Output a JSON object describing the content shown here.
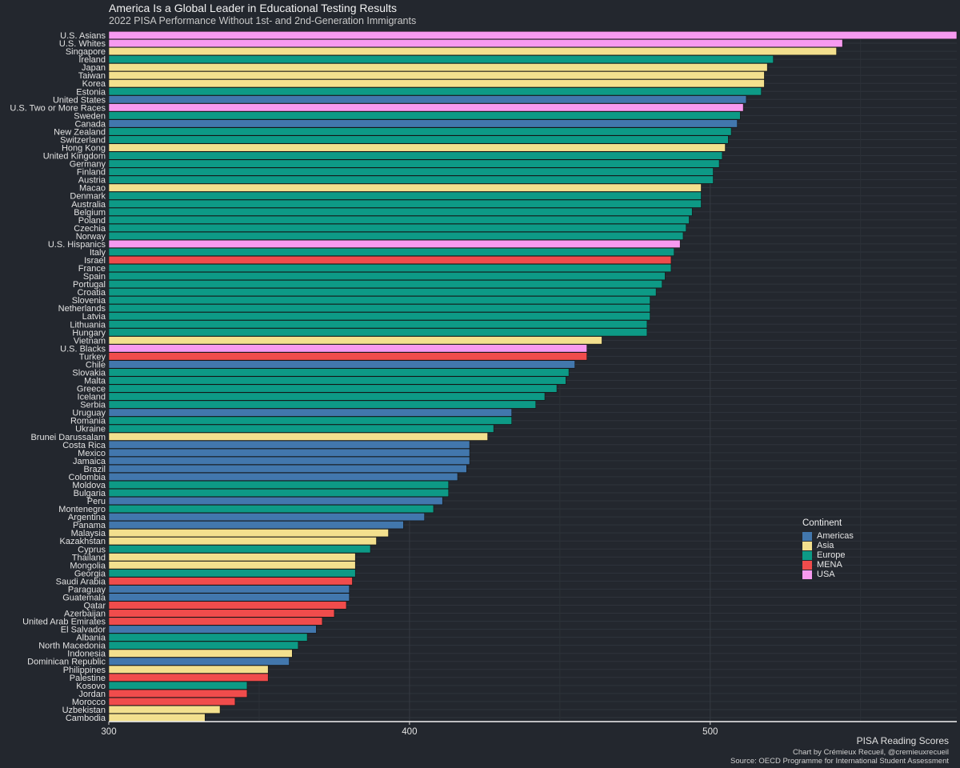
{
  "chart_data": {
    "type": "bar",
    "orientation": "horizontal",
    "title": "America Is a Global Leader in Educational Testing Results",
    "subtitle": "2022 PISA Performance Without 1st- and 2nd-Generation Immigrants",
    "xlabel": "PISA Reading Scores",
    "xlim": [
      300,
      582
    ],
    "xticks": [
      300,
      400,
      500
    ],
    "grid": true,
    "legend_title": "Continent",
    "legend_position": "right",
    "legend": [
      {
        "name": "Americas",
        "color": "#4277ad"
      },
      {
        "name": "Asia",
        "color": "#f3e08e"
      },
      {
        "name": "Europe",
        "color": "#0d9a86"
      },
      {
        "name": "MENA",
        "color": "#f04c4c"
      },
      {
        "name": "USA",
        "color": "#f79af0"
      }
    ],
    "bars": [
      {
        "label": "U.S. Asians",
        "value": 582,
        "group": "USA"
      },
      {
        "label": "U.S. Whites",
        "value": 544,
        "group": "USA"
      },
      {
        "label": "Singapore",
        "value": 542,
        "group": "Asia"
      },
      {
        "label": "Ireland",
        "value": 521,
        "group": "Europe"
      },
      {
        "label": "Japan",
        "value": 519,
        "group": "Asia"
      },
      {
        "label": "Taiwan",
        "value": 518,
        "group": "Asia"
      },
      {
        "label": "Korea",
        "value": 518,
        "group": "Asia"
      },
      {
        "label": "Estonia",
        "value": 517,
        "group": "Europe"
      },
      {
        "label": "United States",
        "value": 512,
        "group": "Americas"
      },
      {
        "label": "U.S. Two or More Races",
        "value": 511,
        "group": "USA"
      },
      {
        "label": "Sweden",
        "value": 510,
        "group": "Europe"
      },
      {
        "label": "Canada",
        "value": 509,
        "group": "Americas"
      },
      {
        "label": "New Zealand",
        "value": 507,
        "group": "Europe"
      },
      {
        "label": "Switzerland",
        "value": 506,
        "group": "Europe"
      },
      {
        "label": "Hong Kong",
        "value": 505,
        "group": "Asia"
      },
      {
        "label": "United Kingdom",
        "value": 504,
        "group": "Europe"
      },
      {
        "label": "Germany",
        "value": 503,
        "group": "Europe"
      },
      {
        "label": "Finland",
        "value": 501,
        "group": "Europe"
      },
      {
        "label": "Austria",
        "value": 501,
        "group": "Europe"
      },
      {
        "label": "Macao",
        "value": 497,
        "group": "Asia"
      },
      {
        "label": "Denmark",
        "value": 497,
        "group": "Europe"
      },
      {
        "label": "Australia",
        "value": 497,
        "group": "Europe"
      },
      {
        "label": "Belgium",
        "value": 494,
        "group": "Europe"
      },
      {
        "label": "Poland",
        "value": 493,
        "group": "Europe"
      },
      {
        "label": "Czechia",
        "value": 492,
        "group": "Europe"
      },
      {
        "label": "Norway",
        "value": 491,
        "group": "Europe"
      },
      {
        "label": "U.S. Hispanics",
        "value": 490,
        "group": "USA"
      },
      {
        "label": "Italy",
        "value": 488,
        "group": "Europe"
      },
      {
        "label": "Israel",
        "value": 487,
        "group": "MENA"
      },
      {
        "label": "France",
        "value": 487,
        "group": "Europe"
      },
      {
        "label": "Spain",
        "value": 485,
        "group": "Europe"
      },
      {
        "label": "Portugal",
        "value": 484,
        "group": "Europe"
      },
      {
        "label": "Croatia",
        "value": 482,
        "group": "Europe"
      },
      {
        "label": "Slovenia",
        "value": 480,
        "group": "Europe"
      },
      {
        "label": "Netherlands",
        "value": 480,
        "group": "Europe"
      },
      {
        "label": "Latvia",
        "value": 480,
        "group": "Europe"
      },
      {
        "label": "Lithuania",
        "value": 479,
        "group": "Europe"
      },
      {
        "label": "Hungary",
        "value": 479,
        "group": "Europe"
      },
      {
        "label": "Vietnam",
        "value": 464,
        "group": "Asia"
      },
      {
        "label": "U.S. Blacks",
        "value": 459,
        "group": "USA"
      },
      {
        "label": "Turkey",
        "value": 459,
        "group": "MENA"
      },
      {
        "label": "Chile",
        "value": 455,
        "group": "Americas"
      },
      {
        "label": "Slovakia",
        "value": 453,
        "group": "Europe"
      },
      {
        "label": "Malta",
        "value": 452,
        "group": "Europe"
      },
      {
        "label": "Greece",
        "value": 449,
        "group": "Europe"
      },
      {
        "label": "Iceland",
        "value": 445,
        "group": "Europe"
      },
      {
        "label": "Serbia",
        "value": 442,
        "group": "Europe"
      },
      {
        "label": "Uruguay",
        "value": 434,
        "group": "Americas"
      },
      {
        "label": "Romania",
        "value": 434,
        "group": "Europe"
      },
      {
        "label": "Ukraine",
        "value": 428,
        "group": "Europe"
      },
      {
        "label": "Brunei Darussalam",
        "value": 426,
        "group": "Asia"
      },
      {
        "label": "Costa Rica",
        "value": 420,
        "group": "Americas"
      },
      {
        "label": "Mexico",
        "value": 420,
        "group": "Americas"
      },
      {
        "label": "Jamaica",
        "value": 420,
        "group": "Americas"
      },
      {
        "label": "Brazil",
        "value": 419,
        "group": "Americas"
      },
      {
        "label": "Colombia",
        "value": 416,
        "group": "Americas"
      },
      {
        "label": "Moldova",
        "value": 413,
        "group": "Europe"
      },
      {
        "label": "Bulgaria",
        "value": 413,
        "group": "Europe"
      },
      {
        "label": "Peru",
        "value": 411,
        "group": "Americas"
      },
      {
        "label": "Montenegro",
        "value": 408,
        "group": "Europe"
      },
      {
        "label": "Argentina",
        "value": 405,
        "group": "Americas"
      },
      {
        "label": "Panama",
        "value": 398,
        "group": "Americas"
      },
      {
        "label": "Malaysia",
        "value": 393,
        "group": "Asia"
      },
      {
        "label": "Kazakhstan",
        "value": 389,
        "group": "Asia"
      },
      {
        "label": "Cyprus",
        "value": 387,
        "group": "Europe"
      },
      {
        "label": "Thailand",
        "value": 382,
        "group": "Asia"
      },
      {
        "label": "Mongolia",
        "value": 382,
        "group": "Asia"
      },
      {
        "label": "Georgia",
        "value": 382,
        "group": "Europe"
      },
      {
        "label": "Saudi Arabia",
        "value": 381,
        "group": "MENA"
      },
      {
        "label": "Paraguay",
        "value": 380,
        "group": "Americas"
      },
      {
        "label": "Guatemala",
        "value": 380,
        "group": "Americas"
      },
      {
        "label": "Qatar",
        "value": 379,
        "group": "MENA"
      },
      {
        "label": "Azerbaijan",
        "value": 375,
        "group": "MENA"
      },
      {
        "label": "United Arab Emirates",
        "value": 371,
        "group": "MENA"
      },
      {
        "label": "El Salvador",
        "value": 369,
        "group": "Americas"
      },
      {
        "label": "Albania",
        "value": 366,
        "group": "Europe"
      },
      {
        "label": "North Macedonia",
        "value": 363,
        "group": "Europe"
      },
      {
        "label": "Indonesia",
        "value": 361,
        "group": "Asia"
      },
      {
        "label": "Dominican Republic",
        "value": 360,
        "group": "Americas"
      },
      {
        "label": "Philippines",
        "value": 353,
        "group": "Asia"
      },
      {
        "label": "Palestine",
        "value": 353,
        "group": "MENA"
      },
      {
        "label": "Kosovo",
        "value": 346,
        "group": "Europe"
      },
      {
        "label": "Jordan",
        "value": 346,
        "group": "MENA"
      },
      {
        "label": "Morocco",
        "value": 342,
        "group": "MENA"
      },
      {
        "label": "Uzbekistan",
        "value": 337,
        "group": "Asia"
      },
      {
        "label": "Cambodia",
        "value": 332,
        "group": "Asia"
      }
    ]
  },
  "caption": {
    "line1": "Chart by Crémieux Recueil, @cremieuxrecueil",
    "line2": "Source: OECD Programme for International Student Assessment"
  }
}
